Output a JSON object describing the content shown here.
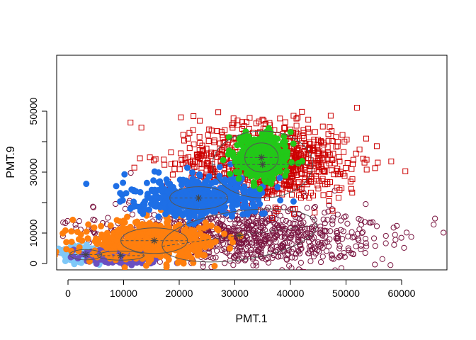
{
  "chart_data": {
    "type": "scatter",
    "title": "",
    "xlabel": "PMT.1",
    "ylabel": "PMT.9",
    "xlim": [
      -2000,
      67000
    ],
    "ylim": [
      -2000,
      67000
    ],
    "xticks": [
      0,
      10000,
      20000,
      30000,
      40000,
      50000,
      60000
    ],
    "yticks": [
      0,
      10000,
      30000,
      50000
    ],
    "xtick_labels": [
      "0",
      "10000",
      "20000",
      "30000",
      "40000",
      "50000",
      "60000"
    ],
    "ytick_labels": [
      "0",
      "10000",
      "30000",
      "50000"
    ],
    "grid": false,
    "legend": "none",
    "clusters": [
      {
        "color": "#7FC8F8",
        "marker": "circle-filled",
        "center": [
          3200,
          2900
        ],
        "spread": [
          2600,
          1600
        ]
      },
      {
        "color": "#6A4FC0",
        "marker": "circle-filled",
        "center": [
          9500,
          2600
        ],
        "spread": [
          4000,
          1600
        ]
      },
      {
        "color": "#FF7F0E",
        "marker": "circle-filled",
        "center": [
          15500,
          7500
        ],
        "spread": [
          8500,
          4200
        ]
      },
      {
        "color": "#1E6FE6",
        "marker": "circle-filled",
        "center": [
          23500,
          21500
        ],
        "spread": [
          8000,
          4500
        ]
      },
      {
        "color": "#22C818",
        "marker": "circle-filled",
        "center": [
          34800,
          34800
        ],
        "spread": [
          3200,
          4800
        ]
      },
      {
        "color": "#CC0000",
        "marker": "square-open",
        "center": [
          36000,
          33000
        ],
        "spread": [
          11000,
          9000
        ]
      },
      {
        "color": "#7A1540",
        "marker": "circle-open",
        "center": [
          30800,
          9200
        ],
        "spread": [
          18000,
          7000
        ]
      }
    ],
    "stars": [
      [
        3200,
        2900
      ],
      [
        9500,
        2600
      ],
      [
        15500,
        7500
      ],
      [
        23500,
        21500
      ],
      [
        30800,
        9200
      ],
      [
        34800,
        34800
      ],
      [
        35000,
        32500
      ]
    ],
    "ellipses": [
      {
        "center": [
          3200,
          2900
        ],
        "radii": [
          2900,
          1700
        ],
        "angle": 0
      },
      {
        "center": [
          9500,
          2600
        ],
        "radii": [
          4200,
          1500
        ],
        "angle": 0
      },
      {
        "center": [
          15500,
          7500
        ],
        "radii": [
          6000,
          4200
        ],
        "angle": 0
      },
      {
        "center": [
          23500,
          21500
        ],
        "radii": [
          5200,
          3700
        ],
        "angle": 0
      },
      {
        "center": [
          30800,
          9200
        ],
        "radii": [
          14000,
          8000
        ],
        "angle": 8
      },
      {
        "center": [
          34800,
          34800
        ],
        "radii": [
          3000,
          4800
        ],
        "angle": 0
      },
      {
        "center": [
          35000,
          32500
        ],
        "radii": [
          9000,
          11000
        ],
        "angle": 0
      }
    ]
  }
}
